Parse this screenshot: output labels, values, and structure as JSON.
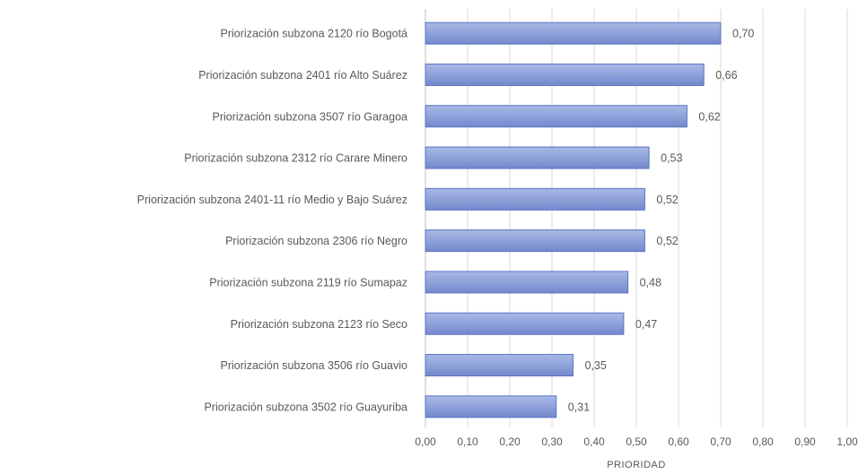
{
  "chart_data": {
    "type": "bar",
    "orientation": "horizontal",
    "categories": [
      "Priorización subzona 2120 río Bogotá",
      "Priorización subzona 2401 río Alto Suárez",
      "Priorización subzona 3507 río Garagoa",
      "Priorización subzona 2312 río Carare Minero",
      "Priorización subzona 2401-11 río Medio y Bajo Suárez",
      "Priorización subzona 2306 río Negro",
      "Priorización subzona 2119 río Sumapaz",
      "Priorización subzona 2123 río Seco",
      "Priorización subzona 3506 río Guavio",
      "Priorización subzona 3502 río Guayuriba"
    ],
    "values": [
      0.7,
      0.66,
      0.62,
      0.53,
      0.52,
      0.52,
      0.48,
      0.47,
      0.35,
      0.31
    ],
    "value_labels": [
      "0,70",
      "0,66",
      "0,62",
      "0,53",
      "0,52",
      "0,52",
      "0,48",
      "0,47",
      "0,35",
      "0,31"
    ],
    "x_ticks": [
      "0,00",
      "0,10",
      "0,20",
      "0,30",
      "0,40",
      "0,50",
      "0,60",
      "0,70",
      "0,80",
      "0,90",
      "1,00"
    ],
    "xlim": [
      0,
      1
    ],
    "xlabel": "PRIORIDAD",
    "ylabel": "",
    "title": "",
    "grid": true,
    "legend": "none",
    "colors": {
      "bar": "#8ea2da",
      "bar_edge": "#5b74c2"
    }
  }
}
